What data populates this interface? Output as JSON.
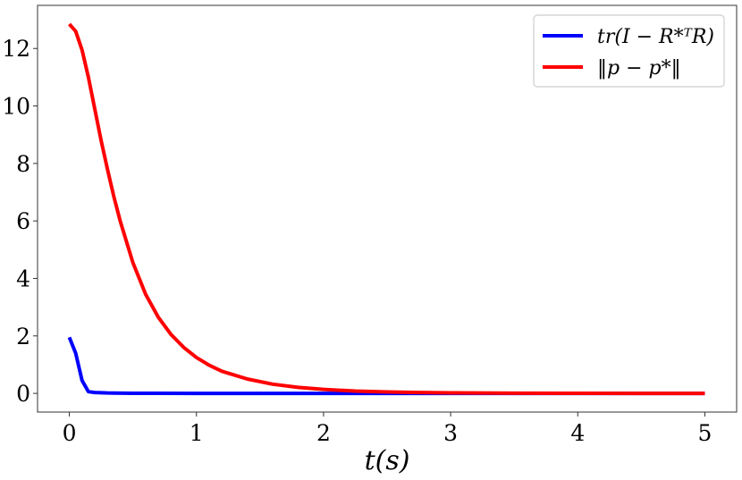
{
  "chart_data": {
    "type": "line",
    "title": "",
    "xlabel": "t(s)",
    "ylabel": "",
    "xlim": [
      -0.25,
      5.25
    ],
    "ylim": [
      -0.65,
      13.5
    ],
    "xticks": [
      0,
      1,
      2,
      3,
      4,
      5
    ],
    "yticks": [
      0,
      2,
      4,
      6,
      8,
      10,
      12
    ],
    "xtick_labels": [
      "0",
      "1",
      "2",
      "3",
      "4",
      "5"
    ],
    "ytick_labels": [
      "0",
      "2",
      "4",
      "6",
      "8",
      "10",
      "12"
    ],
    "grid": false,
    "legend_position": "top-right",
    "series": [
      {
        "name": "tr(I − R*ᵀR)",
        "color": "#0000ff",
        "x": [
          0,
          0.05,
          0.1,
          0.15,
          0.2,
          0.3,
          0.5,
          0.7,
          1,
          2,
          3,
          4,
          5
        ],
        "y": [
          1.95,
          1.4,
          0.45,
          0.06,
          0.03,
          0.015,
          0.005,
          0.002,
          0,
          0,
          0,
          0,
          0
        ]
      },
      {
        "name": "‖p − p*‖",
        "color": "#ff0000",
        "x": [
          0,
          0.05,
          0.1,
          0.15,
          0.2,
          0.25,
          0.3,
          0.35,
          0.4,
          0.5,
          0.6,
          0.7,
          0.8,
          0.9,
          1.0,
          1.1,
          1.2,
          1.4,
          1.6,
          1.8,
          2.0,
          2.25,
          2.5,
          2.75,
          3.0,
          3.5,
          4.0,
          4.5,
          5.0
        ],
        "y": [
          12.85,
          12.6,
          11.95,
          11.0,
          9.9,
          8.8,
          7.8,
          6.85,
          6.0,
          4.55,
          3.45,
          2.65,
          2.05,
          1.6,
          1.25,
          0.98,
          0.77,
          0.5,
          0.32,
          0.21,
          0.14,
          0.08,
          0.05,
          0.03,
          0.02,
          0.008,
          0.003,
          0.001,
          0
        ]
      }
    ]
  }
}
